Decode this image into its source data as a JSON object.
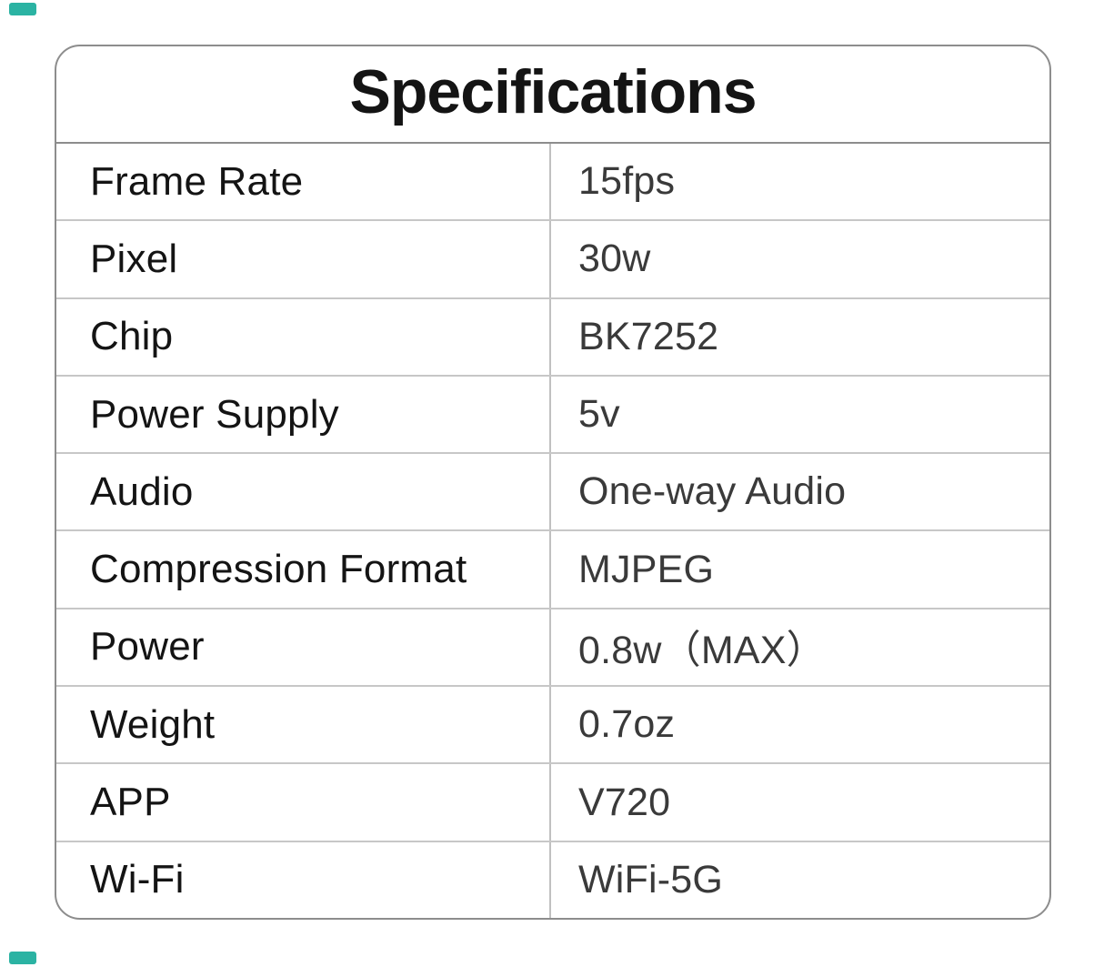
{
  "accent_color": "#2bb3a3",
  "card": {
    "title": "Specifications",
    "rows": [
      {
        "label": "Frame Rate",
        "value": "15fps"
      },
      {
        "label": "Pixel",
        "value": "30w"
      },
      {
        "label": "Chip",
        "value": "BK7252"
      },
      {
        "label": "Power Supply",
        "value": "5v"
      },
      {
        "label": "Audio",
        "value": "One-way Audio"
      },
      {
        "label": "Compression Format",
        "value": "MJPEG"
      },
      {
        "label": "Power",
        "value": "0.8w（MAX）"
      },
      {
        "label": "Weight",
        "value": "0.7oz"
      },
      {
        "label": "APP",
        "value": "V720"
      },
      {
        "label": "Wi-Fi",
        "value": "WiFi-5G"
      }
    ]
  }
}
